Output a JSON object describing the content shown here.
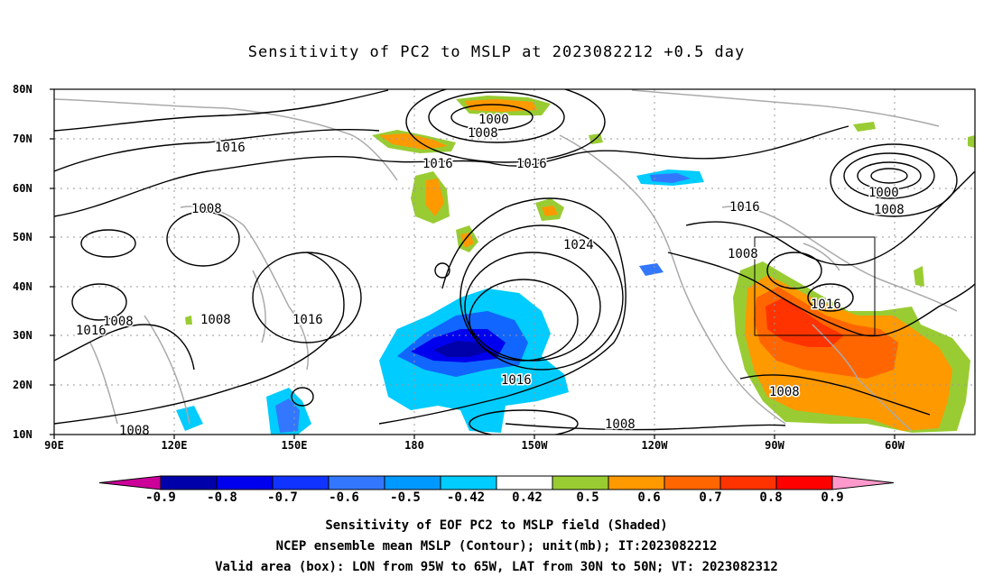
{
  "title": "Sensitivity of PC2 to MSLP at 2023082212 +0.5 day",
  "lat_labels": [
    "80N",
    "70N",
    "60N",
    "50N",
    "40N",
    "30N",
    "20N",
    "10N"
  ],
  "lon_labels": [
    "90E",
    "120E",
    "150E",
    "180",
    "150W",
    "120W",
    "90W",
    "60W"
  ],
  "colorbar": {
    "labels": [
      "-0.9",
      "-0.8",
      "-0.7",
      "-0.6",
      "-0.5",
      "-0.42",
      "0.42",
      "0.5",
      "0.6",
      "0.7",
      "0.8",
      "0.9"
    ],
    "colors": [
      "#cc0099",
      "#0000aa",
      "#0000ee",
      "#1133ff",
      "#3377ff",
      "#0099ff",
      "#00ccff",
      "#ffffff",
      "#99cc33",
      "#ff9900",
      "#ff6600",
      "#ff3300",
      "#ff0000",
      "#ff99cc"
    ]
  },
  "contour_labels": [
    "1016",
    "1008",
    "1000",
    "1008",
    "1016",
    "1016",
    "1024",
    "1016",
    "1008",
    "1000",
    "1008",
    "1016",
    "1016",
    "1008",
    "1008",
    "1016",
    "1008",
    "1016",
    "1008",
    "1008"
  ],
  "captions": {
    "line1": "Sensitivity of EOF PC2 to MSLP field (Shaded)",
    "line2": "NCEP ensemble mean MSLP (Contour); unit(mb); IT:2023082212",
    "line3": "Valid area (box): LON from 95W to 65W, LAT from 30N to 50N; VT: 2023082312"
  },
  "valid_box": {
    "lon_from": "95W",
    "lon_to": "65W",
    "lat_from": "30N",
    "lat_to": "50N"
  }
}
